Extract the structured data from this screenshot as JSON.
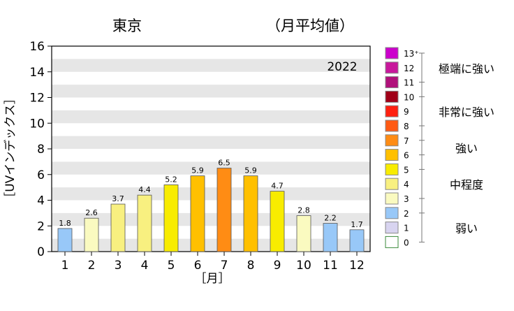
{
  "chart_data": {
    "type": "bar",
    "title": "東京",
    "subtitle": "（月平均値）",
    "year_label": "2022",
    "xlabel": "［月］",
    "ylabel": "［UVインデックス］",
    "categories": [
      "1",
      "2",
      "3",
      "4",
      "5",
      "6",
      "7",
      "8",
      "9",
      "10",
      "11",
      "12"
    ],
    "values": [
      1.8,
      2.6,
      3.7,
      4.4,
      5.2,
      5.9,
      6.5,
      5.9,
      4.7,
      2.8,
      2.2,
      1.7
    ],
    "value_labels": [
      "1.8",
      "2.6",
      "3.7",
      "4.4",
      "5.2",
      "5.9",
      "6.5",
      "5.9",
      "4.7",
      "2.8",
      "2.2",
      "1.7"
    ],
    "ylim": [
      0,
      16
    ],
    "yticks": [
      "0",
      "2",
      "4",
      "6",
      "8",
      "10",
      "12",
      "14",
      "16"
    ],
    "grid": "horizontal bands",
    "legend_position": "right",
    "scale_legend": [
      {
        "label": "13⁺",
        "color": "#cc00cc"
      },
      {
        "label": "12",
        "color": "#c8189c"
      },
      {
        "label": "11",
        "color": "#b0107a"
      },
      {
        "label": "10",
        "color": "#a00018"
      },
      {
        "label": "9",
        "color": "#ff2010"
      },
      {
        "label": "8",
        "color": "#ff5a14"
      },
      {
        "label": "7",
        "color": "#ff8c14"
      },
      {
        "label": "6",
        "color": "#ffc000"
      },
      {
        "label": "5",
        "color": "#f8ec00"
      },
      {
        "label": "4",
        "color": "#f8f080"
      },
      {
        "label": "3",
        "color": "#fafac0"
      },
      {
        "label": "2",
        "color": "#98c8f8"
      },
      {
        "label": "1",
        "color": "#d8d4f0"
      },
      {
        "label": "0",
        "color": "#ffffff"
      }
    ],
    "categories_legend": [
      {
        "label": "極端に強い",
        "from": 11,
        "to": 13
      },
      {
        "label": "非常に強い",
        "from": 8,
        "to": 10
      },
      {
        "label": "強い",
        "from": 6,
        "to": 7
      },
      {
        "label": "中程度",
        "from": 3,
        "to": 5
      },
      {
        "label": "弱い",
        "from": 0,
        "to": 2
      }
    ]
  }
}
